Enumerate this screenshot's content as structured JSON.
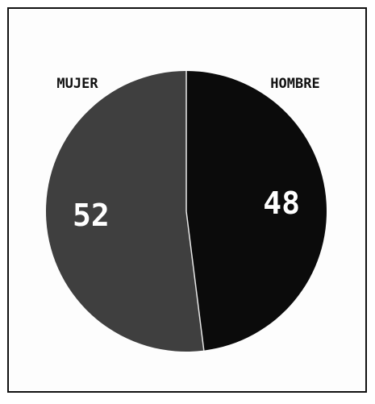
{
  "chart_data": {
    "type": "pie",
    "categories": [
      "HOMBRE",
      "MUJER"
    ],
    "values": [
      48,
      52
    ],
    "colors": [
      "#0b0b0b",
      "#3f3f3f"
    ],
    "start": "top",
    "direction": "clockwise"
  }
}
